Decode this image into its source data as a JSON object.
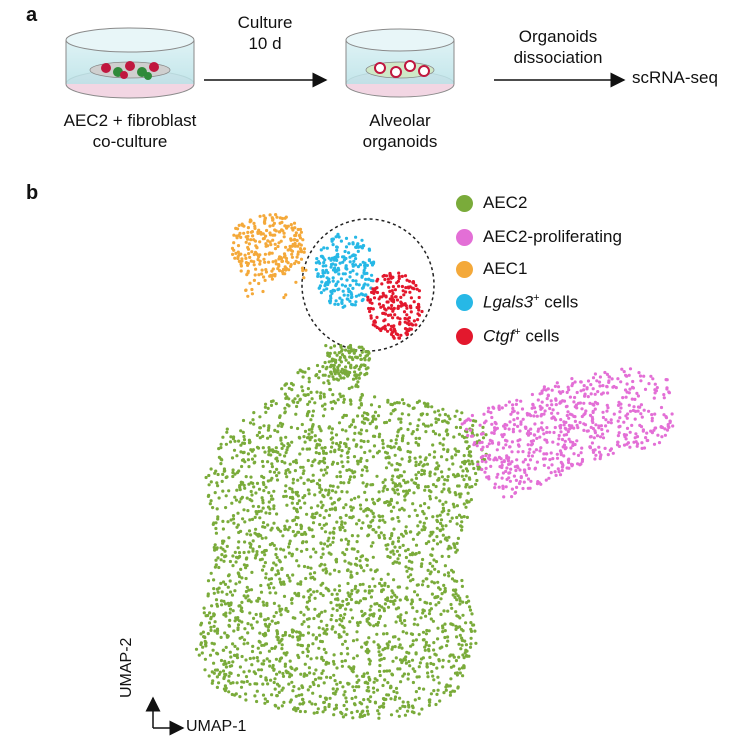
{
  "panel_a": {
    "label": "a",
    "dish1_caption_line1": "AEC2 + fibroblast",
    "dish1_caption_line2": "co-culture",
    "step1_line1": "Culture",
    "step1_line2": "10 d",
    "dish2_caption_line1": "Alveolar",
    "dish2_caption_line2": "organoids",
    "step2_line1": "Organoids",
    "step2_line2": "dissociation",
    "final": "scRNA-seq"
  },
  "panel_b": {
    "label": "b",
    "legend": [
      {
        "label": "AEC2",
        "color": "#7aab3a"
      },
      {
        "label": "AEC2-proliferating",
        "color": "#e36fd6"
      },
      {
        "label": "AEC1",
        "color": "#f4a93a"
      },
      {
        "label_gene": "Lgals3",
        "label_sup": "+",
        "label_rest": " cells",
        "color": "#27b8e6"
      },
      {
        "label_gene": "Ctgf",
        "label_sup": "+",
        "label_rest": " cells",
        "color": "#e3182d"
      }
    ],
    "x_axis": "UMAP-1",
    "y_axis": "UMAP-2"
  }
}
